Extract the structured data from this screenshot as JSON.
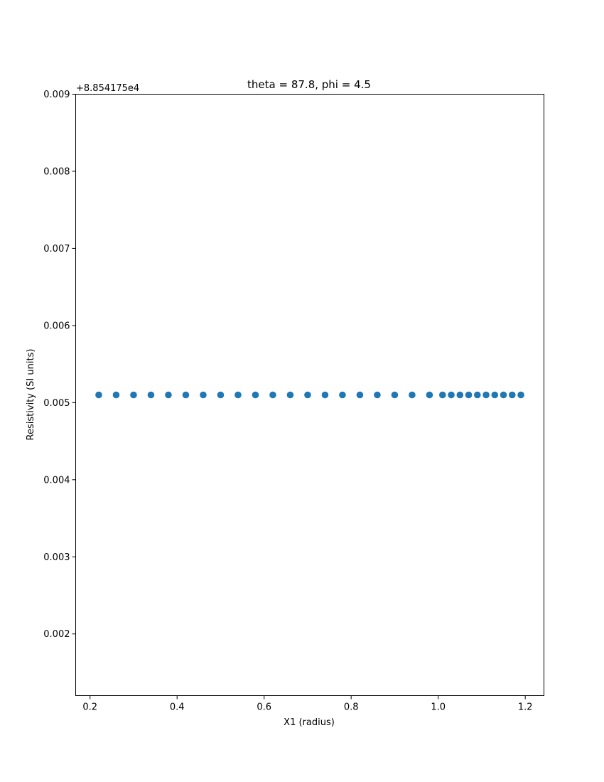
{
  "chart_data": {
    "type": "scatter",
    "title": "theta = 87.8, phi = 4.5",
    "xlabel": "X1 (radius)",
    "ylabel": "Resistivity (SI units)",
    "y_offset_label": "+8.854175e4",
    "xlim": [
      0.167,
      1.243
    ],
    "ylim": [
      0.0012,
      0.009
    ],
    "xticks": [
      0.2,
      0.4,
      0.6,
      0.8,
      1.0,
      1.2
    ],
    "xtick_labels": [
      "0.2",
      "0.4",
      "0.6",
      "0.8",
      "1.0",
      "1.2"
    ],
    "yticks": [
      0.002,
      0.003,
      0.004,
      0.005,
      0.006,
      0.007,
      0.008,
      0.009
    ],
    "ytick_labels": [
      "0.002",
      "0.003",
      "0.004",
      "0.005",
      "0.006",
      "0.007",
      "0.008",
      "0.009"
    ],
    "grid": false,
    "marker_color": "#1f77b4",
    "series": [
      {
        "x": [
          0.22,
          0.26,
          0.3,
          0.34,
          0.38,
          0.42,
          0.46,
          0.5,
          0.54,
          0.58,
          0.62,
          0.66,
          0.7,
          0.74,
          0.78,
          0.82,
          0.86,
          0.9,
          0.94,
          0.98,
          1.01,
          1.03,
          1.05,
          1.07,
          1.09,
          1.11,
          1.13,
          1.15,
          1.17,
          1.19
        ],
        "y": [
          0.0051,
          0.0051,
          0.0051,
          0.0051,
          0.0051,
          0.0051,
          0.0051,
          0.0051,
          0.0051,
          0.0051,
          0.0051,
          0.0051,
          0.0051,
          0.0051,
          0.0051,
          0.0051,
          0.0051,
          0.0051,
          0.0051,
          0.0051,
          0.0051,
          0.0051,
          0.0051,
          0.0051,
          0.0051,
          0.0051,
          0.0051,
          0.0051,
          0.0051,
          0.0051
        ]
      }
    ]
  }
}
